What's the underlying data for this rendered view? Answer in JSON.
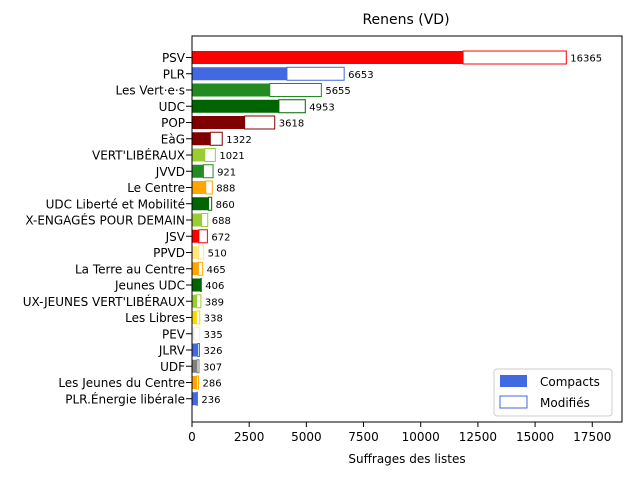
{
  "chart_data": {
    "type": "bar",
    "orientation": "horizontal",
    "title": "Renens (VD)",
    "xlabel": "Suffrages des listes",
    "ylabel": "",
    "xlim": [
      0,
      18800
    ],
    "xticks": [
      0,
      2500,
      5000,
      7500,
      10000,
      12500,
      15000,
      17500
    ],
    "xtick_labels": [
      "0",
      "2500",
      "5000",
      "7500",
      "10000",
      "12500",
      "15000",
      "17500"
    ],
    "grid": false,
    "legend_position": "bottom-right",
    "legend": [
      {
        "label": "Compacts",
        "style": "filled",
        "color": "#4169E1"
      },
      {
        "label": "Modifiés",
        "style": "outline",
        "color": "#4169E1"
      }
    ],
    "categories": [
      "PSV",
      "PLR",
      "Les Vert·e·s",
      "UDC",
      "POP",
      "EàG",
      "VERT'LIBÉRAUX",
      "JVVD",
      "Le Centre",
      "UDC Liberté et Mobilité",
      "X-ENGAGÉS POUR DEMAIN",
      "JSV",
      "PPVD",
      "La Terre au Centre",
      "Jeunes UDC",
      "UX-JEUNES VERT'LIBÉRAUX",
      "Les Libres",
      "PEV",
      "JLRV",
      "UDF",
      "Les Jeunes du Centre",
      "PLR.Énergie libérale"
    ],
    "series": [
      {
        "name": "Compacts",
        "values": [
          11850,
          4150,
          3400,
          3800,
          2300,
          800,
          560,
          500,
          600,
          720,
          420,
          300,
          290,
          280,
          390,
          200,
          190,
          100,
          250,
          220,
          200,
          210
        ]
      },
      {
        "name": "Modifiés",
        "values": [
          4515,
          2503,
          2255,
          1153,
          1318,
          522,
          461,
          421,
          288,
          140,
          268,
          372,
          220,
          185,
          16,
          189,
          148,
          235,
          76,
          87,
          86,
          26
        ]
      }
    ],
    "totals": [
      16365,
      6653,
      5655,
      4953,
      3618,
      1322,
      1021,
      921,
      888,
      860,
      688,
      672,
      510,
      465,
      406,
      389,
      338,
      335,
      326,
      307,
      286,
      236
    ],
    "colors": [
      "#FF0000",
      "#4169E1",
      "#228B22",
      "#006400",
      "#800000",
      "#800000",
      "#9ACD32",
      "#228B22",
      "#FFA500",
      "#006400",
      "#9ACD32",
      "#FF0000",
      "#FFE680",
      "#FFA500",
      "#006400",
      "#9ACD32",
      "#FFD700",
      "#EEEEEE",
      "#4169E1",
      "#808080",
      "#FFA500",
      "#4169E1"
    ]
  }
}
